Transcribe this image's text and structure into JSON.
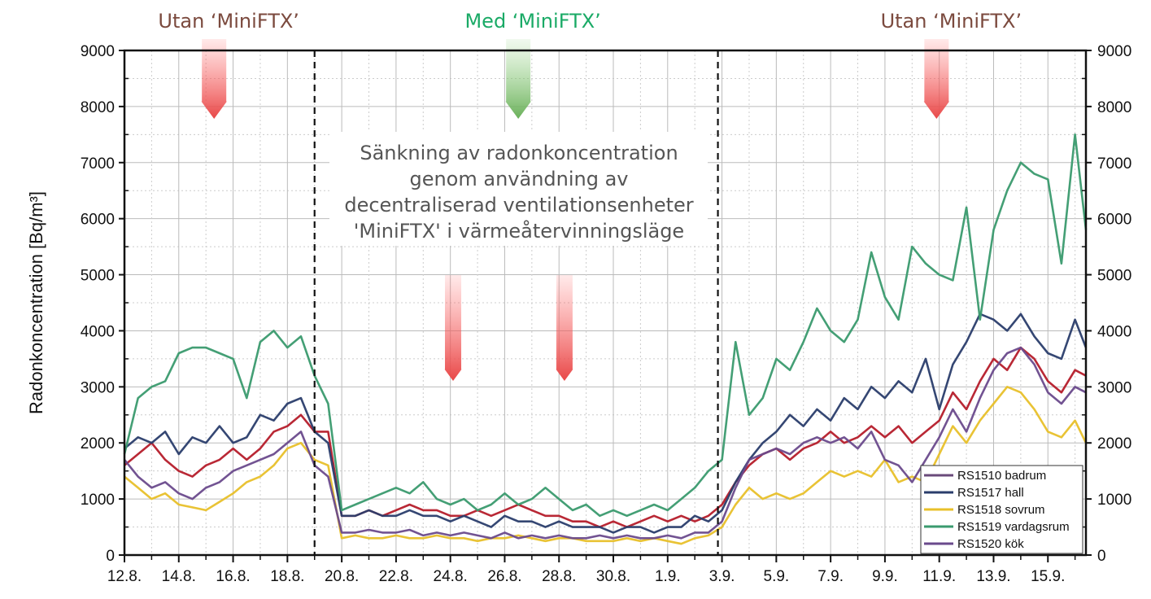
{
  "chart_data": {
    "type": "line",
    "ylabel": "Radonkoncentration [Bq/m³]",
    "ylim": [
      0,
      9000
    ],
    "yticks": [
      "0",
      "1000",
      "2000",
      "3000",
      "4000",
      "5000",
      "6000",
      "7000",
      "8000",
      "9000"
    ],
    "xlim_days": [
      0,
      35.4
    ],
    "xticks": [
      {
        "day": 0,
        "label": "12.8."
      },
      {
        "day": 2,
        "label": "14.8."
      },
      {
        "day": 4,
        "label": "16.8."
      },
      {
        "day": 6,
        "label": "18.8."
      },
      {
        "day": 8,
        "label": "20.8."
      },
      {
        "day": 10,
        "label": "22.8."
      },
      {
        "day": 12,
        "label": "24.8."
      },
      {
        "day": 14,
        "label": "26.8."
      },
      {
        "day": 16,
        "label": "28.8."
      },
      {
        "day": 18,
        "label": "30.8."
      },
      {
        "day": 20,
        "label": "1.9."
      },
      {
        "day": 22,
        "label": "3.9."
      },
      {
        "day": 24,
        "label": "5.9."
      },
      {
        "day": 26,
        "label": "7.9."
      },
      {
        "day": 28,
        "label": "9.9."
      },
      {
        "day": 30,
        "label": "11.9."
      },
      {
        "day": 32,
        "label": "13.9."
      },
      {
        "day": 34,
        "label": "15.9."
      }
    ],
    "x_step_days": 0.5,
    "grid": true,
    "legend_position": "bottom-right",
    "phase_boundaries_days": [
      7,
      21.85
    ],
    "phases": [
      {
        "label": "Utan ‘MiniFTX’",
        "color": "#7b4a3e",
        "day": 3.3,
        "arrow_color": "red"
      },
      {
        "label": "Med ‘MiniFTX’",
        "color": "#1aaa66",
        "day": 14.5,
        "arrow_color": "green"
      },
      {
        "label": "Utan ‘MiniFTX’",
        "color": "#7b4a3e",
        "day": 29.9,
        "arrow_color": "red"
      }
    ],
    "annotation": [
      "Sänkning av radonkoncentration",
      "genom användning av",
      "decentraliserad ventilationsenheter",
      "'MiniFTX' i värmeåtervinningsläge"
    ],
    "series": [
      {
        "name": "RS1510 badrum",
        "color": "#b51c2a",
        "legend_color": "#6a4a7a",
        "values": [
          1600,
          1800,
          2000,
          1700,
          1500,
          1400,
          1600,
          1700,
          1900,
          1700,
          1900,
          2200,
          2300,
          2500,
          2200,
          2200,
          700,
          700,
          800,
          700,
          800,
          900,
          800,
          800,
          700,
          700,
          800,
          700,
          800,
          900,
          800,
          700,
          700,
          600,
          600,
          500,
          600,
          500,
          600,
          700,
          600,
          700,
          600,
          700,
          900,
          1300,
          1600,
          1800,
          1900,
          1700,
          1900,
          2000,
          2200,
          2000,
          2100,
          2300,
          2100,
          2300,
          2000,
          2200,
          2400,
          2900,
          2600,
          3100,
          3500,
          3300,
          3700,
          3500,
          3100,
          2900,
          3300,
          3200
        ]
      },
      {
        "name": "RS1517 hall",
        "color": "#2a3d6b",
        "legend_color": "#2a3d6b",
        "values": [
          1900,
          2100,
          2000,
          2200,
          1800,
          2100,
          2000,
          2300,
          2000,
          2100,
          2500,
          2400,
          2700,
          2800,
          2200,
          2000,
          700,
          700,
          800,
          700,
          700,
          800,
          700,
          700,
          600,
          700,
          600,
          500,
          700,
          600,
          600,
          500,
          600,
          500,
          500,
          500,
          400,
          500,
          500,
          400,
          500,
          500,
          700,
          600,
          800,
          1300,
          1700,
          2000,
          2200,
          2500,
          2300,
          2600,
          2400,
          2800,
          2600,
          3000,
          2800,
          3100,
          2900,
          3500,
          2600,
          3400,
          3800,
          4300,
          4200,
          4000,
          4300,
          3900,
          3600,
          3500,
          4200,
          3700
        ]
      },
      {
        "name": "RS1518 sovrum",
        "color": "#e8c02a",
        "legend_color": "#e8c02a",
        "values": [
          1400,
          1200,
          1000,
          1100,
          900,
          850,
          800,
          950,
          1100,
          1300,
          1400,
          1600,
          1900,
          2000,
          1700,
          1600,
          300,
          350,
          300,
          300,
          350,
          300,
          300,
          350,
          300,
          300,
          250,
          300,
          300,
          350,
          300,
          250,
          300,
          300,
          250,
          250,
          250,
          300,
          250,
          300,
          250,
          200,
          300,
          350,
          500,
          900,
          1200,
          1000,
          1100,
          1000,
          1100,
          1300,
          1500,
          1400,
          1500,
          1400,
          1700,
          1300,
          1400,
          1300,
          1800,
          2300,
          2000,
          2400,
          2700,
          3000,
          2900,
          2600,
          2200,
          2100,
          2400,
          2000
        ]
      },
      {
        "name": "RS1519 vardagsrum",
        "color": "#3a9a6e",
        "legend_color": "#3a9a6e",
        "values": [
          1800,
          2800,
          3000,
          3100,
          3600,
          3700,
          3700,
          3600,
          3500,
          2800,
          3800,
          4000,
          3700,
          3900,
          3200,
          2700,
          800,
          900,
          1000,
          1100,
          1200,
          1100,
          1300,
          1000,
          900,
          1000,
          800,
          900,
          1100,
          900,
          1000,
          1200,
          1000,
          800,
          900,
          700,
          800,
          700,
          800,
          900,
          800,
          1000,
          1200,
          1500,
          1700,
          3800,
          2500,
          2800,
          3500,
          3300,
          3800,
          4400,
          4000,
          3800,
          4200,
          5400,
          4600,
          4200,
          5500,
          5200,
          5000,
          4900,
          6200,
          4200,
          5800,
          6500,
          7000,
          6800,
          6700,
          5200,
          7500,
          5800
        ]
      },
      {
        "name": "RS1520 kök",
        "color": "#6a4a8c",
        "legend_color": "#6a4a8c",
        "values": [
          1700,
          1400,
          1200,
          1300,
          1100,
          1000,
          1200,
          1300,
          1500,
          1600,
          1700,
          1800,
          2000,
          2200,
          1600,
          1400,
          400,
          400,
          450,
          400,
          400,
          450,
          350,
          400,
          350,
          400,
          350,
          300,
          400,
          300,
          350,
          300,
          350,
          300,
          300,
          350,
          300,
          350,
          300,
          300,
          350,
          300,
          400,
          400,
          600,
          1200,
          1700,
          1800,
          1900,
          1800,
          2000,
          2100,
          2000,
          2100,
          1900,
          2200,
          1700,
          1600,
          1300,
          1700,
          2100,
          2600,
          2200,
          2800,
          3300,
          3600,
          3700,
          3400,
          2900,
          2700,
          3000,
          2900
        ]
      }
    ]
  }
}
